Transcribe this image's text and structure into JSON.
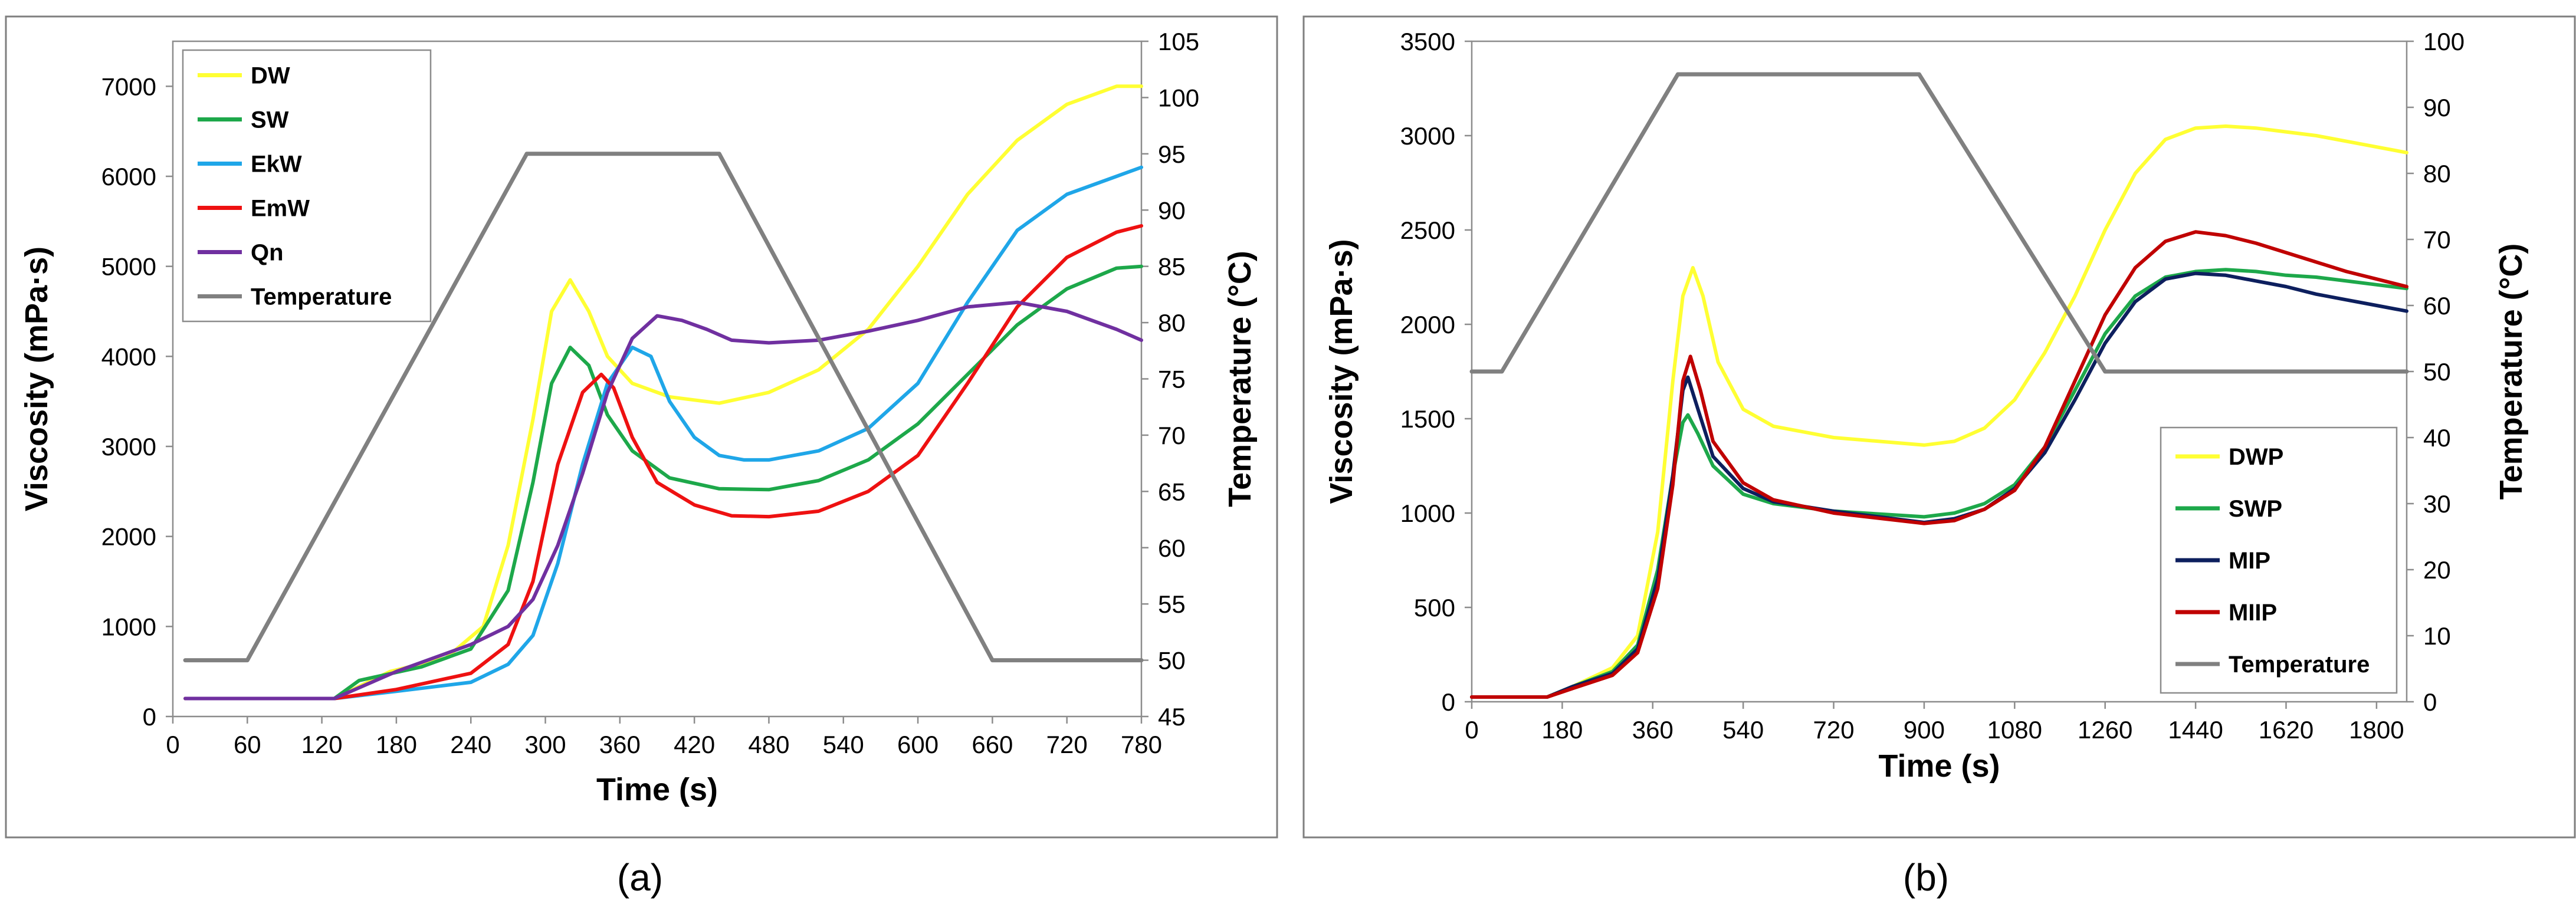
{
  "chart_data": [
    {
      "type": "line",
      "panel_label": "(a)",
      "xlabel": "Time (s)",
      "ylabel": "Viscosity (mPa·s)",
      "y2label": "Temperature (°C)",
      "xlim": [
        0,
        780
      ],
      "ylim": [
        0,
        7500
      ],
      "y2lim": [
        45,
        105
      ],
      "xticks": [
        0,
        60,
        120,
        180,
        240,
        300,
        360,
        420,
        480,
        540,
        600,
        660,
        720,
        780
      ],
      "yticks": [
        0,
        1000,
        2000,
        3000,
        4000,
        5000,
        6000,
        7000
      ],
      "y2ticks": [
        45,
        50,
        55,
        60,
        65,
        70,
        75,
        80,
        85,
        90,
        95,
        100,
        105
      ],
      "legend_position": "top-left",
      "series": [
        {
          "name": "DW",
          "color": "#ffff33",
          "axis": "left",
          "x": [
            10,
            130,
            175,
            220,
            250,
            270,
            290,
            305,
            320,
            335,
            350,
            370,
            400,
            440,
            480,
            520,
            560,
            600,
            640,
            680,
            720,
            760,
            780
          ],
          "values": [
            200,
            200,
            500,
            650,
            1000,
            1900,
            3300,
            4500,
            4850,
            4500,
            4000,
            3700,
            3550,
            3480,
            3600,
            3850,
            4300,
            5000,
            5800,
            6400,
            6800,
            7000,
            7000
          ]
        },
        {
          "name": "SW",
          "color": "#1da84a",
          "axis": "left",
          "x": [
            10,
            130,
            150,
            200,
            240,
            270,
            290,
            305,
            320,
            335,
            350,
            370,
            400,
            440,
            480,
            520,
            560,
            600,
            640,
            680,
            720,
            760,
            780
          ],
          "values": [
            200,
            200,
            400,
            550,
            750,
            1400,
            2600,
            3700,
            4100,
            3900,
            3350,
            2950,
            2650,
            2530,
            2520,
            2620,
            2850,
            3250,
            3800,
            4350,
            4750,
            4980,
            5000
          ]
        },
        {
          "name": "EkW",
          "color": "#1fa6e8",
          "axis": "left",
          "x": [
            10,
            130,
            180,
            240,
            270,
            290,
            310,
            330,
            350,
            370,
            385,
            400,
            420,
            440,
            460,
            480,
            520,
            560,
            600,
            640,
            680,
            720,
            760,
            780
          ],
          "values": [
            200,
            200,
            280,
            380,
            580,
            900,
            1700,
            2800,
            3700,
            4100,
            4000,
            3500,
            3100,
            2900,
            2850,
            2850,
            2950,
            3200,
            3700,
            4600,
            5400,
            5800,
            6000,
            6100
          ]
        },
        {
          "name": "EmW",
          "color": "#ee1111",
          "axis": "left",
          "x": [
            10,
            130,
            180,
            240,
            270,
            290,
            310,
            330,
            345,
            355,
            370,
            390,
            420,
            450,
            480,
            520,
            560,
            600,
            640,
            680,
            720,
            760,
            780
          ],
          "values": [
            200,
            200,
            300,
            480,
            800,
            1500,
            2800,
            3600,
            3800,
            3650,
            3100,
            2600,
            2350,
            2230,
            2220,
            2280,
            2500,
            2900,
            3700,
            4550,
            5100,
            5380,
            5450
          ]
        },
        {
          "name": "Qn",
          "color": "#7030a0",
          "axis": "left",
          "x": [
            10,
            130,
            180,
            240,
            270,
            290,
            310,
            330,
            350,
            370,
            390,
            410,
            430,
            450,
            480,
            520,
            560,
            600,
            640,
            680,
            720,
            760,
            780
          ],
          "values": [
            200,
            200,
            500,
            800,
            1000,
            1300,
            1900,
            2700,
            3600,
            4200,
            4450,
            4400,
            4300,
            4180,
            4150,
            4180,
            4280,
            4400,
            4550,
            4600,
            4500,
            4300,
            4180
          ]
        },
        {
          "name": "Temperature",
          "color": "#808080",
          "axis": "right",
          "x": [
            10,
            60,
            285,
            440,
            660,
            780
          ],
          "values": [
            50,
            50,
            95,
            95,
            50,
            50
          ]
        }
      ]
    },
    {
      "type": "line",
      "panel_label": "(b)",
      "xlabel": "Time (s)",
      "ylabel": "Viscosity (mPa·s)",
      "y2label": "Temperature (°C)",
      "xlim": [
        0,
        1860
      ],
      "ylim": [
        0,
        3500
      ],
      "y2lim": [
        0,
        100
      ],
      "xticks": [
        0,
        180,
        360,
        540,
        720,
        900,
        1080,
        1260,
        1440,
        1620,
        1800
      ],
      "yticks": [
        0,
        500,
        1000,
        1500,
        2000,
        2500,
        3000,
        3500
      ],
      "y2ticks": [
        0,
        10,
        20,
        30,
        40,
        50,
        60,
        70,
        80,
        90,
        100
      ],
      "legend_position": "bottom-right",
      "series": [
        {
          "name": "DWP",
          "color": "#ffff33",
          "axis": "left",
          "x": [
            0,
            150,
            200,
            280,
            330,
            370,
            400,
            420,
            440,
            460,
            490,
            540,
            600,
            720,
            900,
            960,
            1020,
            1080,
            1140,
            1200,
            1260,
            1320,
            1380,
            1440,
            1500,
            1560,
            1620,
            1680,
            1740,
            1800,
            1860
          ],
          "values": [
            25,
            25,
            80,
            180,
            350,
            900,
            1700,
            2150,
            2300,
            2150,
            1800,
            1550,
            1460,
            1400,
            1360,
            1380,
            1450,
            1600,
            1850,
            2150,
            2500,
            2800,
            2980,
            3040,
            3050,
            3040,
            3020,
            3000,
            2970,
            2940,
            2910
          ]
        },
        {
          "name": "SWP",
          "color": "#1da84a",
          "axis": "left",
          "x": [
            0,
            150,
            200,
            280,
            330,
            370,
            400,
            420,
            430,
            450,
            480,
            540,
            600,
            720,
            900,
            960,
            1020,
            1080,
            1140,
            1200,
            1260,
            1320,
            1380,
            1440,
            1500,
            1560,
            1620,
            1680,
            1740,
            1800,
            1860
          ],
          "values": [
            25,
            25,
            80,
            160,
            300,
            700,
            1200,
            1480,
            1520,
            1420,
            1250,
            1100,
            1050,
            1010,
            980,
            1000,
            1050,
            1150,
            1350,
            1650,
            1950,
            2150,
            2250,
            2280,
            2290,
            2280,
            2260,
            2250,
            2230,
            2210,
            2190
          ]
        },
        {
          "name": "MIP",
          "color": "#0d1f5e",
          "axis": "left",
          "x": [
            0,
            150,
            200,
            280,
            330,
            370,
            400,
            420,
            430,
            450,
            480,
            540,
            600,
            720,
            900,
            960,
            1020,
            1080,
            1140,
            1200,
            1260,
            1320,
            1380,
            1440,
            1500,
            1560,
            1620,
            1680,
            1740,
            1800,
            1860
          ],
          "values": [
            25,
            25,
            80,
            150,
            280,
            650,
            1200,
            1650,
            1720,
            1550,
            1300,
            1130,
            1060,
            1010,
            950,
            970,
            1020,
            1130,
            1320,
            1600,
            1900,
            2120,
            2240,
            2270,
            2260,
            2230,
            2200,
            2160,
            2130,
            2100,
            2070
          ]
        },
        {
          "name": "MIIP",
          "color": "#c00000",
          "axis": "left",
          "x": [
            0,
            150,
            200,
            280,
            330,
            370,
            400,
            420,
            435,
            455,
            480,
            540,
            600,
            720,
            900,
            960,
            1020,
            1080,
            1140,
            1200,
            1260,
            1320,
            1380,
            1440,
            1500,
            1560,
            1620,
            1680,
            1740,
            1800,
            1860
          ],
          "values": [
            25,
            25,
            70,
            140,
            260,
            600,
            1150,
            1700,
            1830,
            1650,
            1380,
            1160,
            1070,
            1000,
            945,
            960,
            1020,
            1120,
            1350,
            1700,
            2050,
            2300,
            2440,
            2490,
            2470,
            2430,
            2380,
            2330,
            2280,
            2240,
            2200
          ]
        },
        {
          "name": "Temperature",
          "color": "#808080",
          "axis": "right",
          "x": [
            0,
            60,
            410,
            890,
            1260,
            1860
          ],
          "values": [
            50,
            50,
            95,
            95,
            50,
            50
          ]
        }
      ]
    }
  ]
}
